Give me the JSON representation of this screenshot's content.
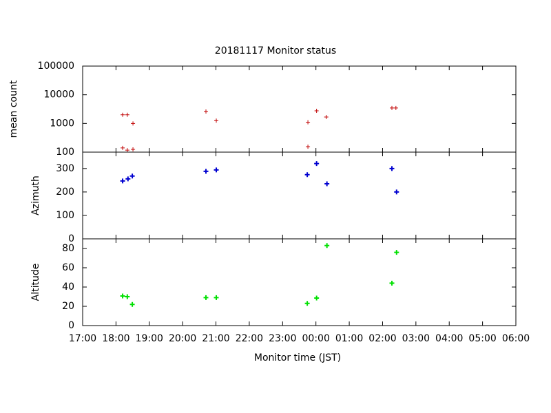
{
  "chart_data": [
    {
      "type": "scatter",
      "title": "20181117 Monitor status",
      "y_label": "mean count",
      "log_scale": true,
      "color": "#c00000",
      "x": [
        18.2,
        18.34,
        18.51,
        18.2,
        18.34,
        18.51,
        20.7,
        21.01,
        23.76,
        23.76,
        24.02,
        24.31,
        26.28,
        26.4
      ],
      "values": [
        2000,
        2000,
        1000,
        140,
        117,
        125,
        2600,
        1250,
        1100,
        155,
        2750,
        1670,
        3450,
        3450
      ],
      "xlim": [
        17,
        30
      ],
      "ylim": [
        100,
        100000
      ],
      "yticks": [
        100,
        1000,
        10000,
        100000
      ]
    },
    {
      "type": "scatter",
      "y_label": "Azimuth",
      "color": "#0000d0",
      "x": [
        18.2,
        18.36,
        18.49,
        20.7,
        21.01,
        23.74,
        24.02,
        24.33,
        26.28,
        26.42
      ],
      "values": [
        247,
        256,
        268,
        288,
        294,
        274,
        321,
        235,
        300,
        200
      ],
      "xlim": [
        17,
        30
      ],
      "ylim": [
        0,
        370
      ],
      "yticks": [
        0,
        100,
        200,
        300
      ]
    },
    {
      "type": "scatter",
      "y_label": "Altitude",
      "x_label": "Monitor time (JST)",
      "color": "#00e000",
      "x": [
        18.2,
        18.34,
        18.49,
        20.7,
        21.01,
        23.74,
        24.02,
        24.33,
        26.28,
        26.42
      ],
      "values": [
        30.7,
        30,
        22,
        29,
        29,
        23,
        28.6,
        83,
        44,
        76
      ],
      "xlim": [
        17,
        30
      ],
      "ylim": [
        0,
        90
      ],
      "yticks": [
        0,
        20,
        40,
        60,
        80
      ],
      "xticks": [
        {
          "value": 17,
          "label": "17:00"
        },
        {
          "value": 18,
          "label": "18:00"
        },
        {
          "value": 19,
          "label": "19:00"
        },
        {
          "value": 20,
          "label": "20:00"
        },
        {
          "value": 21,
          "label": "21:00"
        },
        {
          "value": 22,
          "label": "22:00"
        },
        {
          "value": 23,
          "label": "23:00"
        },
        {
          "value": 24,
          "label": "00:00"
        },
        {
          "value": 25,
          "label": "01:00"
        },
        {
          "value": 26,
          "label": "02:00"
        },
        {
          "value": 27,
          "label": "03:00"
        },
        {
          "value": 28,
          "label": "04:00"
        },
        {
          "value": 29,
          "label": "05:00"
        },
        {
          "value": 30,
          "label": "06:00"
        }
      ]
    }
  ]
}
